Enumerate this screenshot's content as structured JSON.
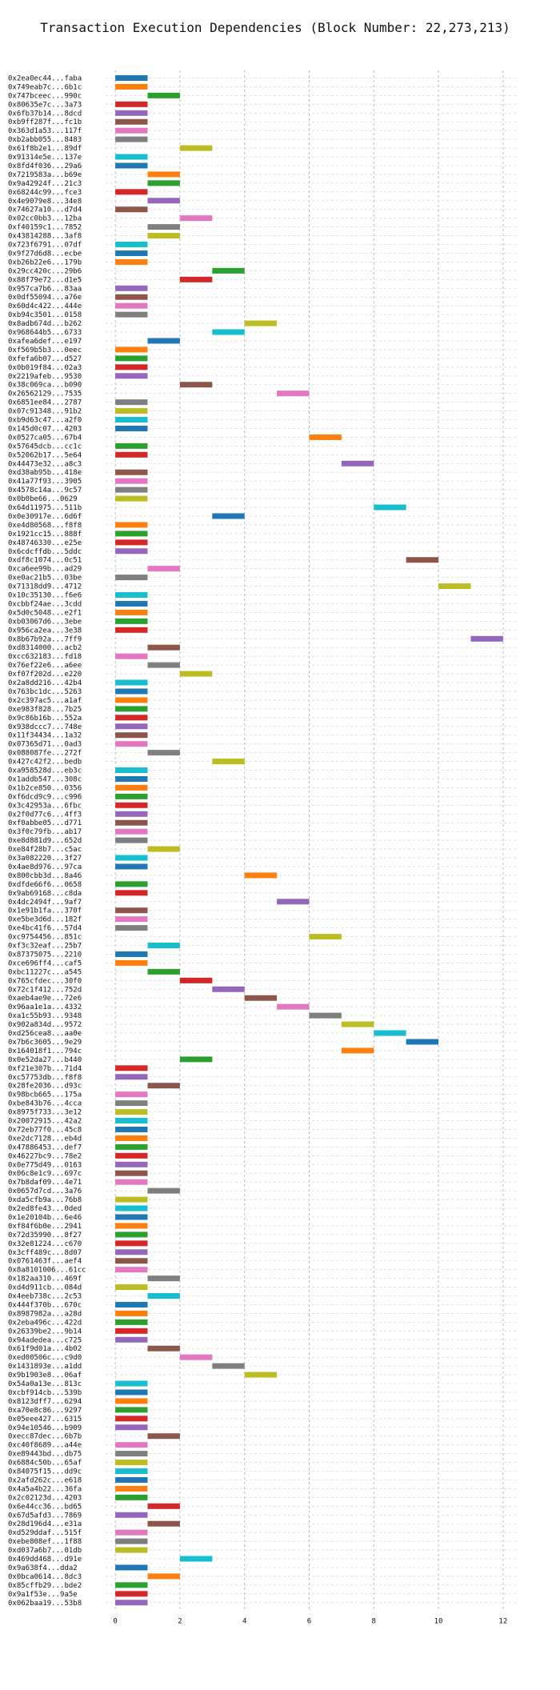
{
  "chart_data": {
    "type": "bar",
    "orientation": "horizontal-gantt",
    "title": "Transaction Execution Dependencies (Block Number: 22,273,213)",
    "xlabel": "",
    "ylabel": "",
    "xlim": [
      -0.3,
      12.4
    ],
    "xticks": [
      0,
      2,
      4,
      6,
      8,
      10,
      12
    ],
    "grid": true,
    "colors": [
      "#1f77b4",
      "#ff7f0e",
      "#2ca02c",
      "#d62728",
      "#9467bd",
      "#8c564b",
      "#e377c2",
      "#7f7f7f",
      "#bcbd22",
      "#17becf"
    ],
    "transactions": [
      {
        "label": "0x2ea0ec44...faba",
        "start": 0
      },
      {
        "label": "0x749eab7c...6b1c",
        "start": 0
      },
      {
        "label": "0x747bceec...990c",
        "start": 1
      },
      {
        "label": "0x80635e7c...3a73",
        "start": 0
      },
      {
        "label": "0x6fb37b14...8dcd",
        "start": 0
      },
      {
        "label": "0xb9ff287f...fc1b",
        "start": 0
      },
      {
        "label": "0x363d1a53...117f",
        "start": 0
      },
      {
        "label": "0xb2abb055...8483",
        "start": 0
      },
      {
        "label": "0x61f8b2e1...89df",
        "start": 2
      },
      {
        "label": "0x91314e5e...137e",
        "start": 0
      },
      {
        "label": "0x8fd4f036...29a6",
        "start": 0
      },
      {
        "label": "0x7219583a...b69e",
        "start": 1
      },
      {
        "label": "0x9a42924f...21c3",
        "start": 1
      },
      {
        "label": "0x68244c99...fce3",
        "start": 0
      },
      {
        "label": "0x4e9079e8...34e8",
        "start": 1
      },
      {
        "label": "0x74627a10...d7d4",
        "start": 0
      },
      {
        "label": "0x02cc0bb3...12ba",
        "start": 2
      },
      {
        "label": "0xf40159c1...7852",
        "start": 1
      },
      {
        "label": "0x43814288...3af8",
        "start": 1
      },
      {
        "label": "0x723f6791...07df",
        "start": 0
      },
      {
        "label": "0x9f27d6d8...ecbe",
        "start": 0
      },
      {
        "label": "0xb26b22e6...179b",
        "start": 0
      },
      {
        "label": "0x29cc420c...29b6",
        "start": 3
      },
      {
        "label": "0x88f79e72...d1e5",
        "start": 2
      },
      {
        "label": "0x957ca7b6...83aa",
        "start": 0
      },
      {
        "label": "0x0df55094...a76e",
        "start": 0
      },
      {
        "label": "0x60d4c422...444e",
        "start": 0
      },
      {
        "label": "0xb94c3501...0158",
        "start": 0
      },
      {
        "label": "0x8adb674d...b262",
        "start": 4
      },
      {
        "label": "0x968644b5...6733",
        "start": 3
      },
      {
        "label": "0xafea6def...e197",
        "start": 1
      },
      {
        "label": "0xf569b5b3...0eec",
        "start": 0
      },
      {
        "label": "0xfefa6b07...d527",
        "start": 0
      },
      {
        "label": "0x0b019f84...02a3",
        "start": 0
      },
      {
        "label": "0x2219afeb...9530",
        "start": 0
      },
      {
        "label": "0x38c069ca...b090",
        "start": 2
      },
      {
        "label": "0x26562129...7535",
        "start": 5
      },
      {
        "label": "0x6851ee84...2787",
        "start": 0
      },
      {
        "label": "0x07c91348...91b2",
        "start": 0
      },
      {
        "label": "0xb9d63c47...a2f0",
        "start": 0
      },
      {
        "label": "0x145d0c07...4203",
        "start": 0
      },
      {
        "label": "0x0527ca05...67b4",
        "start": 6
      },
      {
        "label": "0x57645dcb...cc1c",
        "start": 0
      },
      {
        "label": "0x52062b17...5e64",
        "start": 0
      },
      {
        "label": "0x44473e32...a8c3",
        "start": 7
      },
      {
        "label": "0xd38ab95b...418e",
        "start": 0
      },
      {
        "label": "0x41a77f93...3905",
        "start": 0
      },
      {
        "label": "0x4578c14a...9c57",
        "start": 0
      },
      {
        "label": "0x0b0be66...0629",
        "start": 0
      },
      {
        "label": "0x64d11975...511b",
        "start": 8
      },
      {
        "label": "0x0e30917e...6d6f",
        "start": 3
      },
      {
        "label": "0xe4d80568...f8f8",
        "start": 0
      },
      {
        "label": "0x1921cc15...888f",
        "start": 0
      },
      {
        "label": "0x48746330...e25e",
        "start": 0
      },
      {
        "label": "0x6cdcffdb...5ddc",
        "start": 0
      },
      {
        "label": "0xdf8c1074...0c51",
        "start": 9
      },
      {
        "label": "0xca6ee99b...ad29",
        "start": 1
      },
      {
        "label": "0xe0ac21b5...03be",
        "start": 0
      },
      {
        "label": "0x71318dd9...4712",
        "start": 10
      },
      {
        "label": "0x10c35130...f6e6",
        "start": 0
      },
      {
        "label": "0xcbbf24ae...3cdd",
        "start": 0
      },
      {
        "label": "0x5d0c5048...e2f1",
        "start": 0
      },
      {
        "label": "0xb03067d6...3ebe",
        "start": 0
      },
      {
        "label": "0x956ca2ea...3e38",
        "start": 0
      },
      {
        "label": "0x8b67b92a...7ff9",
        "start": 11
      },
      {
        "label": "0xd8314000...acb2",
        "start": 1
      },
      {
        "label": "0xcc632183...fd18",
        "start": 0
      },
      {
        "label": "0x76ef22e6...a6ee",
        "start": 1
      },
      {
        "label": "0xf07f202d...e220",
        "start": 2
      },
      {
        "label": "0x2a8dd216...42b4",
        "start": 0
      },
      {
        "label": "0x763bc1dc...5263",
        "start": 0
      },
      {
        "label": "0x2c397ac5...a1af",
        "start": 0
      },
      {
        "label": "0xe983f828...7b25",
        "start": 0
      },
      {
        "label": "0x9c86b16b...552a",
        "start": 0
      },
      {
        "label": "0x938dccc7...748e",
        "start": 0
      },
      {
        "label": "0x11f34434...1a32",
        "start": 0
      },
      {
        "label": "0x07365d71...0ad3",
        "start": 0
      },
      {
        "label": "0x088087fe...272f",
        "start": 1
      },
      {
        "label": "0x427c42f2...bedb",
        "start": 3
      },
      {
        "label": "0xa958528d...eb3c",
        "start": 0
      },
      {
        "label": "0x1addb547...308c",
        "start": 0
      },
      {
        "label": "0x1b2ce850...0356",
        "start": 0
      },
      {
        "label": "0xf6dcd9c9...c996",
        "start": 0
      },
      {
        "label": "0x3c42953a...6fbc",
        "start": 0
      },
      {
        "label": "0x2f0d77c6...4ff3",
        "start": 0
      },
      {
        "label": "0xf0abbe05...d771",
        "start": 0
      },
      {
        "label": "0x3f0c79fb...ab17",
        "start": 0
      },
      {
        "label": "0xe8d881d9...652d",
        "start": 0
      },
      {
        "label": "0xe84f28b7...c5ac",
        "start": 1
      },
      {
        "label": "0x3a082220...3f27",
        "start": 0
      },
      {
        "label": "0x4ae8d976...97ca",
        "start": 0
      },
      {
        "label": "0x800cbb3d...8a46",
        "start": 4
      },
      {
        "label": "0xdfde66f6...0658",
        "start": 0
      },
      {
        "label": "0x9ab69168...c8da",
        "start": 0
      },
      {
        "label": "0x4dc2494f...9af7",
        "start": 5
      },
      {
        "label": "0x1e91b1fa...370f",
        "start": 0
      },
      {
        "label": "0xe5be3d6d...182f",
        "start": 0
      },
      {
        "label": "0xe4bc41f6...57d4",
        "start": 0
      },
      {
        "label": "0xc9754456...851c",
        "start": 6
      },
      {
        "label": "0xf3c32eaf...25b7",
        "start": 1
      },
      {
        "label": "0x87375075...2210",
        "start": 0
      },
      {
        "label": "0xce696ff4...caf5",
        "start": 0
      },
      {
        "label": "0xbc11227c...a545",
        "start": 1
      },
      {
        "label": "0x765cfdec...30f0",
        "start": 2
      },
      {
        "label": "0x72c1f412...752d",
        "start": 3
      },
      {
        "label": "0xaeb4ae9e...72e6",
        "start": 4
      },
      {
        "label": "0x96aa1e1a...4332",
        "start": 5
      },
      {
        "label": "0xa1c55b93...9348",
        "start": 6
      },
      {
        "label": "0x902a834d...9572",
        "start": 7
      },
      {
        "label": "0xd256cea8...aa0e",
        "start": 8
      },
      {
        "label": "0x7b6c3605...9e29",
        "start": 9
      },
      {
        "label": "0x164018f1...794c",
        "start": 7
      },
      {
        "label": "0x0e52da27...b440",
        "start": 2
      },
      {
        "label": "0xf21e307b...71d4",
        "start": 0
      },
      {
        "label": "0xc57753db...f8f8",
        "start": 0
      },
      {
        "label": "0x28fe2036...d93c",
        "start": 1
      },
      {
        "label": "0x98bcb665...175a",
        "start": 0
      },
      {
        "label": "0xbe843b76...4cca",
        "start": 0
      },
      {
        "label": "0x8975f733...3e12",
        "start": 0
      },
      {
        "label": "0x20072915...42a2",
        "start": 0
      },
      {
        "label": "0x72eb77f0...45c8",
        "start": 0
      },
      {
        "label": "0xe2dc7128...eb4d",
        "start": 0
      },
      {
        "label": "0x47886453...def7",
        "start": 0
      },
      {
        "label": "0x46227bc9...78e2",
        "start": 0
      },
      {
        "label": "0x0e775d49...0163",
        "start": 0
      },
      {
        "label": "0x06c8e1c9...697c",
        "start": 0
      },
      {
        "label": "0x7b8daf09...4e71",
        "start": 0
      },
      {
        "label": "0x0657d7cd...3a76",
        "start": 1
      },
      {
        "label": "0xda5cfb9a...76b8",
        "start": 0
      },
      {
        "label": "0x2ed8fe43...0ded",
        "start": 0
      },
      {
        "label": "0x1e20104b...6e46",
        "start": 0
      },
      {
        "label": "0xf84f6b0e...2941",
        "start": 0
      },
      {
        "label": "0x72d35990...8f27",
        "start": 0
      },
      {
        "label": "0x32e81224...c670",
        "start": 0
      },
      {
        "label": "0x3cff489c...8d07",
        "start": 0
      },
      {
        "label": "0x0761463f...aef4",
        "start": 0
      },
      {
        "label": "0x8a8101006...61cc",
        "start": 0
      },
      {
        "label": "0x182aa310...469f",
        "start": 1
      },
      {
        "label": "0xd4d911cb...084d",
        "start": 0
      },
      {
        "label": "0x4eeb738c...2c53",
        "start": 1
      },
      {
        "label": "0x444f370b...670c",
        "start": 0
      },
      {
        "label": "0x8987982a...a28d",
        "start": 0
      },
      {
        "label": "0x2eba496c...422d",
        "start": 0
      },
      {
        "label": "0x26339be2...9b14",
        "start": 0
      },
      {
        "label": "0x94adedea...c725",
        "start": 0
      },
      {
        "label": "0x61f9d01a...4b02",
        "start": 1
      },
      {
        "label": "0xed00506c...c9d0",
        "start": 2
      },
      {
        "label": "0x1431893e...a1dd",
        "start": 3
      },
      {
        "label": "0x9b1903e8...06af",
        "start": 4
      },
      {
        "label": "0x54a0a13e...813c",
        "start": 0
      },
      {
        "label": "0xcbf914cb...539b",
        "start": 0
      },
      {
        "label": "0x8123dff7...6294",
        "start": 0
      },
      {
        "label": "0xa70e8c86...9297",
        "start": 0
      },
      {
        "label": "0x05eee427...6315",
        "start": 0
      },
      {
        "label": "0x94e10546...b909",
        "start": 0
      },
      {
        "label": "0xecc87dec...6b7b",
        "start": 1
      },
      {
        "label": "0xc40f8689...a44e",
        "start": 0
      },
      {
        "label": "0xe89443bd...db75",
        "start": 0
      },
      {
        "label": "0x6884c50b...65af",
        "start": 0
      },
      {
        "label": "0x84075f15...dd9c",
        "start": 0
      },
      {
        "label": "0x2afd262c...e618",
        "start": 0
      },
      {
        "label": "0x4a5a4b22...36fa",
        "start": 0
      },
      {
        "label": "0x2c02123d...4203",
        "start": 0
      },
      {
        "label": "0x6e44cc36...bd65",
        "start": 1
      },
      {
        "label": "0x67d5afd3...7869",
        "start": 0
      },
      {
        "label": "0x28d196d4...e31a",
        "start": 1
      },
      {
        "label": "0xd529ddaf...515f",
        "start": 0
      },
      {
        "label": "0xebe808ef...1f88",
        "start": 0
      },
      {
        "label": "0xd037a6b7...01db",
        "start": 0
      },
      {
        "label": "0x469dd468...d91e",
        "start": 2
      },
      {
        "label": "0x9a638f4...dda2",
        "start": 0
      },
      {
        "label": "0x0bca0614...8dc3",
        "start": 1
      },
      {
        "label": "0x85cffb29...bde2",
        "start": 0
      },
      {
        "label": "0x9a1f53e...9a5e",
        "start": 0
      },
      {
        "label": "0x062baa19...53b8",
        "start": 0
      }
    ]
  }
}
